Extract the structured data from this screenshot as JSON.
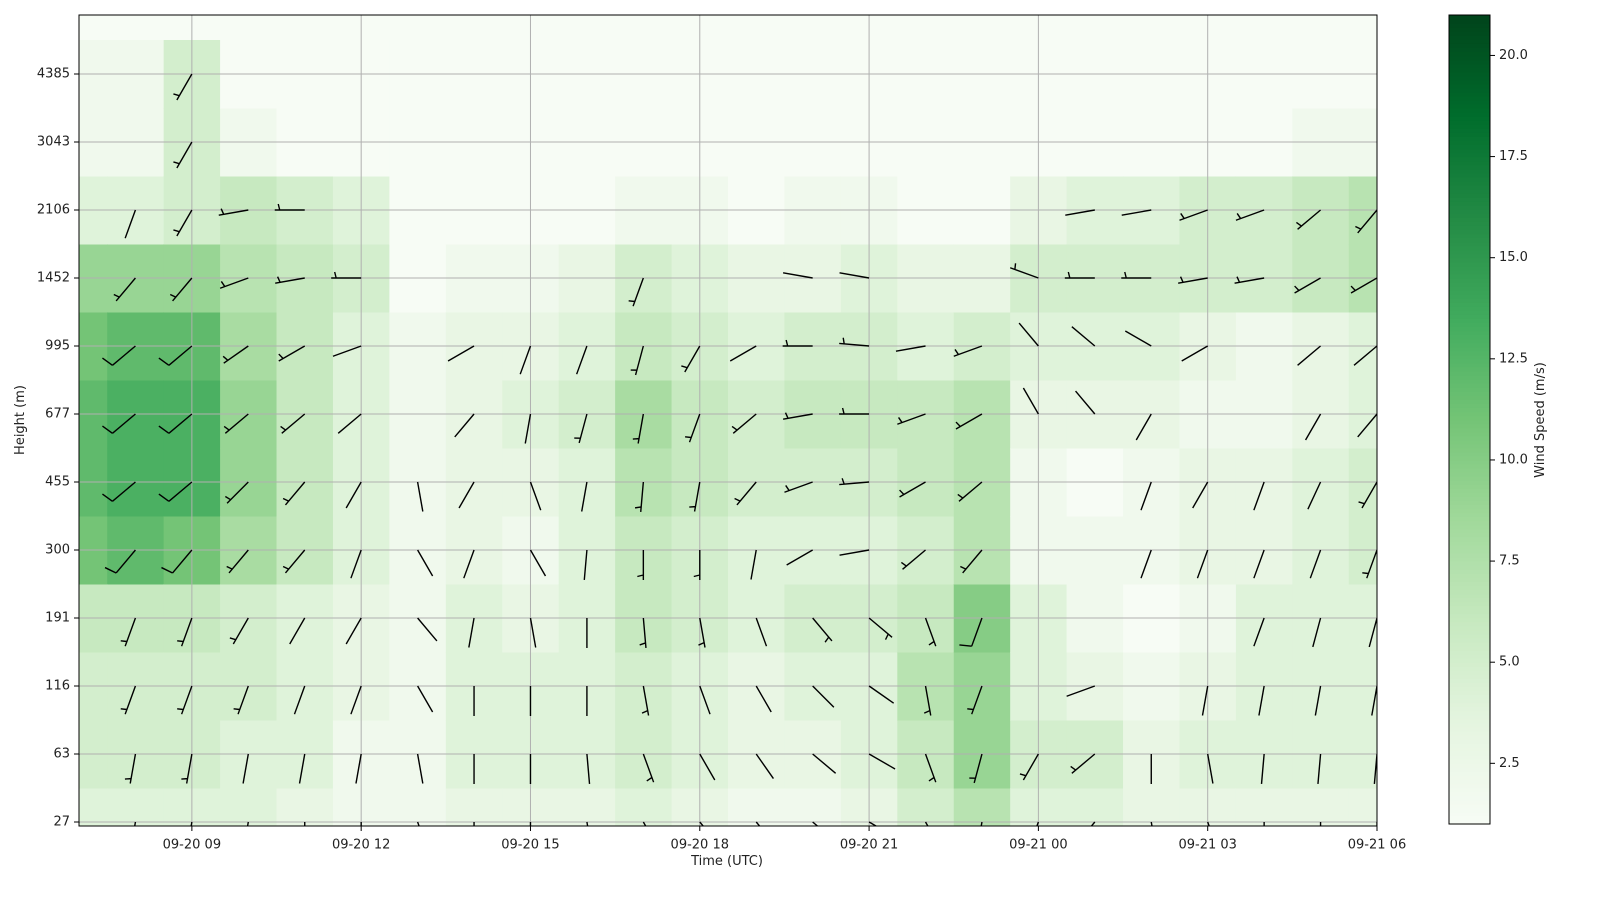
{
  "chart_data": {
    "type": "wind-heatmap",
    "xlabel": "Time (UTC)",
    "ylabel": "Height (m)",
    "colorbar_label": "Wind Speed (m/s)",
    "x": [
      "09-20 07",
      "09-20 08",
      "09-20 09",
      "09-20 10",
      "09-20 11",
      "09-20 12",
      "09-20 13",
      "09-20 14",
      "09-20 15",
      "09-20 16",
      "09-20 17",
      "09-20 18",
      "09-20 19",
      "09-20 20",
      "09-20 21",
      "09-20 22",
      "09-20 23",
      "09-21 00",
      "09-21 01",
      "09-21 02",
      "09-21 03",
      "09-21 04",
      "09-21 05",
      "09-21 06"
    ],
    "xlim": [
      "09-20 07",
      "09-21 06"
    ],
    "xticks": [
      "09-20 09",
      "09-20 12",
      "09-20 15",
      "09-20 18",
      "09-20 21",
      "09-21 00",
      "09-21 03",
      "09-21 06"
    ],
    "levels": [
      27,
      63,
      116,
      191,
      300,
      455,
      677,
      995,
      1452,
      2106,
      3043,
      4385
    ],
    "yticks": [
      27,
      63,
      116,
      191,
      300,
      455,
      677,
      995,
      1452,
      2106,
      3043,
      4385
    ],
    "zlim": [
      1,
      21
    ],
    "zticks": [
      {
        "value": 2.5,
        "label": "2.5"
      },
      {
        "value": 5,
        "label": "5.0"
      },
      {
        "value": 7.5,
        "label": "7.5"
      },
      {
        "value": 10,
        "label": "10.0"
      },
      {
        "value": 12.5,
        "label": "12.5"
      },
      {
        "value": 15,
        "label": "15.0"
      },
      {
        "value": 17.5,
        "label": "17.5"
      },
      {
        "value": 20,
        "label": "20.0"
      }
    ],
    "colormap": [
      "#f7fcf5",
      "#e5f5e0",
      "#c7e9c0",
      "#a1d99b",
      "#74c476",
      "#41ab5d",
      "#238b45",
      "#006d2c",
      "#00441b"
    ],
    "grid": true,
    "barb_color": "#000000",
    "speed": [
      [
        4,
        5,
        5,
        6,
        11,
        12,
        12,
        11,
        9,
        4,
        2,
        2
      ],
      [
        4,
        5,
        5,
        6,
        12,
        13,
        13,
        12,
        9,
        4,
        2,
        2
      ],
      [
        4,
        5,
        5,
        6,
        11,
        13,
        13,
        12,
        9,
        5,
        5,
        5
      ],
      [
        4,
        4,
        5,
        5,
        8,
        9,
        9,
        8,
        7,
        6,
        2,
        1
      ],
      [
        3,
        4,
        4,
        4,
        6,
        6,
        6,
        6,
        6,
        5,
        1,
        1
      ],
      [
        2,
        2,
        3,
        3,
        4,
        4,
        4,
        4,
        5,
        4,
        1,
        1
      ],
      [
        2,
        2,
        2,
        2,
        2,
        2,
        2,
        2,
        1,
        1,
        1,
        1
      ],
      [
        3,
        4,
        4,
        4,
        3,
        3,
        3,
        3,
        2,
        1,
        1,
        1
      ],
      [
        3,
        4,
        4,
        3,
        2,
        3,
        4,
        3,
        2,
        1,
        1,
        1
      ],
      [
        3,
        4,
        4,
        4,
        4,
        4,
        5,
        4,
        3,
        1,
        1,
        1
      ],
      [
        4,
        5,
        5,
        6,
        6,
        7,
        8,
        6,
        5,
        2,
        1,
        1
      ],
      [
        3,
        4,
        4,
        5,
        5,
        6,
        6,
        5,
        4,
        2,
        1,
        1
      ],
      [
        2,
        3,
        3,
        4,
        4,
        5,
        5,
        4,
        3,
        1,
        1,
        1
      ],
      [
        2,
        3,
        4,
        5,
        4,
        5,
        6,
        5,
        3,
        2,
        1,
        1
      ],
      [
        3,
        4,
        4,
        5,
        4,
        5,
        6,
        5,
        4,
        2,
        1,
        1
      ],
      [
        5,
        6,
        7,
        6,
        5,
        6,
        6,
        4,
        3,
        1,
        1,
        1
      ],
      [
        7,
        9,
        9,
        10,
        7,
        7,
        7,
        5,
        3,
        1,
        1,
        1
      ],
      [
        4,
        5,
        4,
        4,
        2,
        2,
        3,
        4,
        5,
        3,
        1,
        1
      ],
      [
        4,
        5,
        3,
        2,
        2,
        1,
        3,
        4,
        5,
        4,
        1,
        1
      ],
      [
        3,
        3,
        2,
        1,
        2,
        2,
        3,
        4,
        5,
        4,
        1,
        1
      ],
      [
        3,
        4,
        3,
        2,
        3,
        3,
        2,
        3,
        5,
        5,
        1,
        1
      ],
      [
        3,
        4,
        4,
        4,
        3,
        3,
        2,
        2,
        5,
        5,
        1,
        1
      ],
      [
        3,
        4,
        4,
        4,
        4,
        4,
        3,
        3,
        6,
        6,
        2,
        1
      ],
      [
        3,
        4,
        4,
        4,
        5,
        5,
        4,
        4,
        7,
        7,
        2,
        1
      ]
    ],
    "direction": [
      [
        190,
        190,
        200,
        200,
        220,
        230,
        230,
        230,
        220,
        null,
        null,
        null
      ],
      [
        190,
        190,
        200,
        200,
        220,
        230,
        230,
        230,
        220,
        200,
        null,
        null
      ],
      [
        190,
        190,
        200,
        200,
        220,
        230,
        230,
        230,
        220,
        210,
        210,
        210
      ],
      [
        190,
        190,
        200,
        210,
        220,
        225,
        230,
        235,
        250,
        260,
        null,
        null
      ],
      [
        180,
        190,
        200,
        210,
        220,
        220,
        230,
        240,
        260,
        270,
        null,
        null
      ],
      [
        180,
        190,
        200,
        210,
        200,
        210,
        230,
        250,
        270,
        null,
        null,
        null
      ],
      [
        160,
        170,
        150,
        140,
        150,
        170,
        null,
        null,
        null,
        null,
        null,
        null
      ],
      [
        180,
        180,
        180,
        190,
        200,
        210,
        220,
        240,
        null,
        null,
        null,
        null
      ],
      [
        180,
        180,
        180,
        170,
        150,
        160,
        190,
        200,
        null,
        null,
        null,
        null
      ],
      [
        170,
        175,
        180,
        180,
        185,
        190,
        195,
        200,
        null,
        null,
        null,
        null
      ],
      [
        150,
        160,
        170,
        175,
        180,
        185,
        190,
        195,
        200,
        null,
        null,
        null
      ],
      [
        140,
        150,
        160,
        170,
        180,
        190,
        200,
        210,
        null,
        null,
        null,
        null
      ],
      [
        140,
        145,
        150,
        160,
        190,
        220,
        230,
        240,
        null,
        null,
        null,
        null
      ],
      [
        130,
        130,
        135,
        140,
        240,
        250,
        260,
        270,
        280,
        null,
        null,
        null
      ],
      [
        120,
        120,
        125,
        130,
        260,
        265,
        270,
        275,
        280,
        null,
        null,
        null
      ],
      [
        150,
        160,
        170,
        160,
        230,
        240,
        250,
        260,
        null,
        null,
        null,
        null
      ],
      [
        190,
        195,
        200,
        200,
        220,
        230,
        240,
        250,
        null,
        null,
        null,
        null
      ],
      [
        200,
        210,
        null,
        null,
        null,
        null,
        330,
        320,
        290,
        null,
        null,
        null
      ],
      [
        220,
        230,
        250,
        null,
        null,
        null,
        320,
        310,
        270,
        260,
        null,
        null
      ],
      [
        170,
        180,
        null,
        null,
        200,
        200,
        210,
        300,
        270,
        260,
        null,
        null
      ],
      [
        160,
        170,
        190,
        null,
        200,
        210,
        null,
        240,
        260,
        250,
        null,
        null
      ],
      [
        180,
        185,
        190,
        200,
        200,
        200,
        null,
        null,
        260,
        250,
        null,
        null
      ],
      [
        180,
        185,
        190,
        195,
        200,
        205,
        210,
        230,
        240,
        230,
        null,
        null
      ],
      [
        180,
        185,
        190,
        195,
        200,
        210,
        220,
        230,
        240,
        220,
        null,
        null
      ]
    ]
  }
}
